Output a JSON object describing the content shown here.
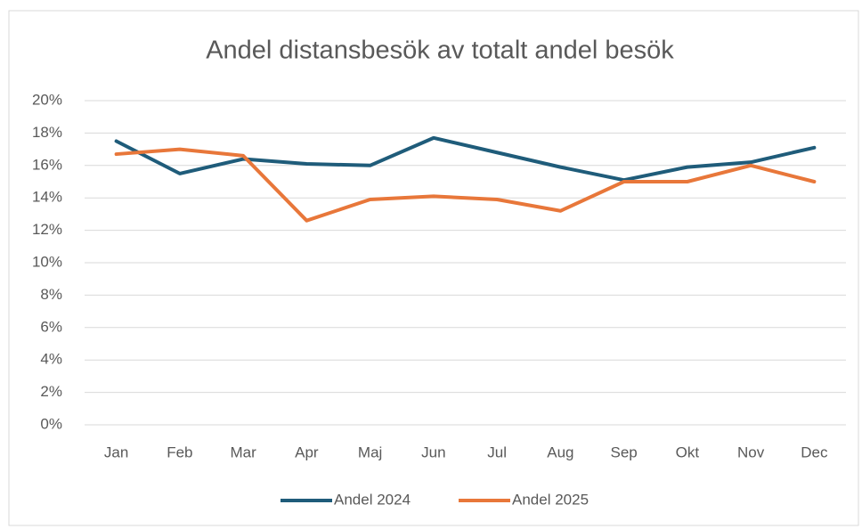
{
  "chart_data": {
    "type": "line",
    "title": "Andel distansbesök av totalt andel besök",
    "categories": [
      "Jan",
      "Feb",
      "Mar",
      "Apr",
      "Maj",
      "Jun",
      "Jul",
      "Aug",
      "Sep",
      "Okt",
      "Nov",
      "Dec"
    ],
    "series": [
      {
        "name": "Andel 2024",
        "color": "#1f5c7a",
        "values": [
          17.5,
          15.5,
          16.4,
          16.1,
          16.0,
          17.7,
          16.8,
          15.9,
          15.1,
          15.9,
          16.2,
          17.1
        ]
      },
      {
        "name": "Andel 2025",
        "color": "#e8773a",
        "values": [
          16.7,
          17.0,
          16.6,
          12.6,
          13.9,
          14.1,
          13.9,
          13.2,
          15.0,
          15.0,
          16.0,
          15.0
        ]
      }
    ],
    "ylim": [
      0,
      20
    ],
    "yticks": [
      {
        "value": 0,
        "label": "0%"
      },
      {
        "value": 2,
        "label": "2%"
      },
      {
        "value": 4,
        "label": "4%"
      },
      {
        "value": 6,
        "label": "6%"
      },
      {
        "value": 8,
        "label": "8%"
      },
      {
        "value": 10,
        "label": "10%"
      },
      {
        "value": 12,
        "label": "12%"
      },
      {
        "value": 14,
        "label": "14%"
      },
      {
        "value": 16,
        "label": "16%"
      },
      {
        "value": 18,
        "label": "18%"
      },
      {
        "value": 20,
        "label": "20%"
      }
    ],
    "grid": true,
    "legend": "bottom"
  }
}
